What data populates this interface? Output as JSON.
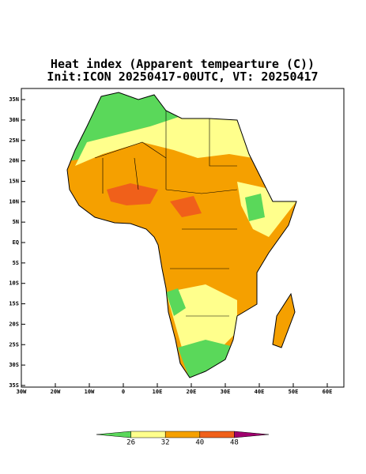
{
  "title_lines": [
    "Heat index (Apparent tempearture (C))",
    "Init:ICON 20250417-00UTC, VT: 20250417"
  ],
  "map": {
    "lon_ticks": [
      {
        "value": -30,
        "label": "30W"
      },
      {
        "value": -20,
        "label": "20W"
      },
      {
        "value": -10,
        "label": "10W"
      },
      0,
      {
        "value": 10,
        "label": "10E"
      },
      {
        "value": 20,
        "label": "20E"
      },
      {
        "value": 30,
        "label": "30E"
      },
      {
        "value": 40,
        "label": "40E"
      },
      {
        "value": 50,
        "label": "50E"
      },
      {
        "value": 60,
        "label": "60E"
      }
    ],
    "lat_ticks": [
      {
        "value": 35,
        "label": "35N"
      },
      {
        "value": 30,
        "label": "30N"
      },
      {
        "value": 25,
        "label": "25N"
      },
      {
        "value": 20,
        "label": "20N"
      },
      {
        "value": 15,
        "label": "15N"
      },
      {
        "value": 10,
        "label": "10N"
      },
      {
        "value": 5,
        "label": "5N"
      },
      {
        "value": 0,
        "label": "EQ"
      },
      {
        "value": -5,
        "label": "5S"
      },
      {
        "value": -10,
        "label": "10S"
      },
      {
        "value": -15,
        "label": "15S"
      },
      {
        "value": -20,
        "label": "20S"
      },
      {
        "value": -25,
        "label": "25S"
      },
      {
        "value": -30,
        "label": "30S"
      },
      {
        "value": -35,
        "label": "35S"
      }
    ]
  },
  "colorbar": {
    "levels": [
      26,
      32,
      40,
      48
    ],
    "colors": [
      "#5ad85a",
      "#ffff8c",
      "#f5a000",
      "#f0601a",
      "#a0006e"
    ]
  }
}
